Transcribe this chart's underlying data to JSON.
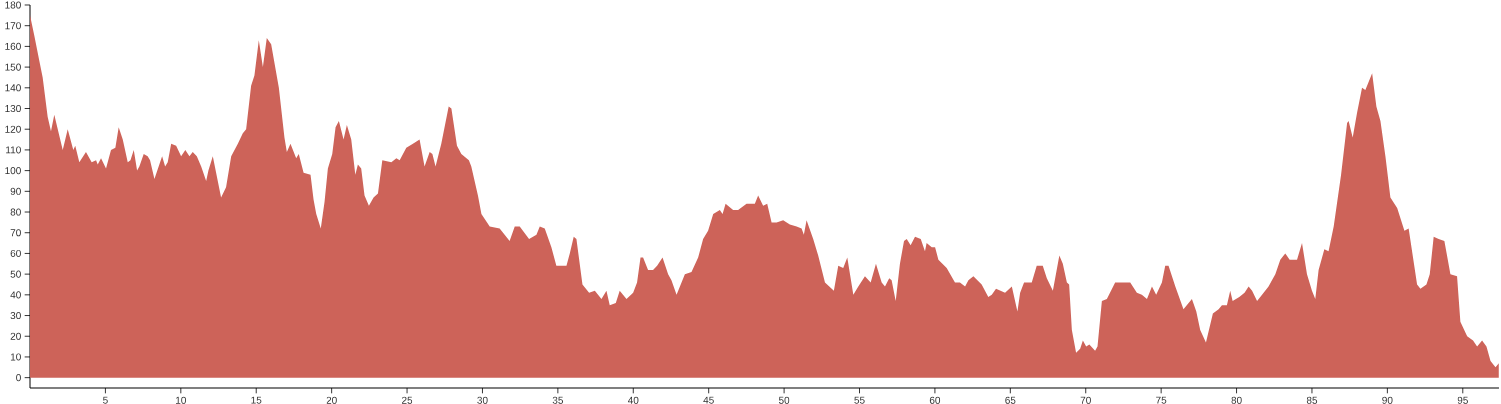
{
  "chart_data": {
    "type": "area",
    "color": "#cd6359",
    "x": [
      0.0,
      0.29,
      0.62,
      0.84,
      1.17,
      1.39,
      1.61,
      2.17,
      2.5,
      2.87,
      3.0,
      3.27,
      3.71,
      4.09,
      4.38,
      4.49,
      4.71,
      5.04,
      5.37,
      5.66,
      5.88,
      6.15,
      6.48,
      6.66,
      6.88,
      7.1,
      7.25,
      7.54,
      7.8,
      7.96,
      8.25,
      8.76,
      8.96,
      9.13,
      9.36,
      9.69,
      10.02,
      10.3,
      10.57,
      10.79,
      11.06,
      11.35,
      11.68,
      11.83,
      12.12,
      12.67,
      13.0,
      13.34,
      13.78,
      14.11,
      14.33,
      14.66,
      14.88,
      15.17,
      15.44,
      15.7,
      15.99,
      16.5,
      16.87,
      17.03,
      17.27,
      17.65,
      17.82,
      18.14,
      18.6,
      18.8,
      18.98,
      19.28,
      19.53,
      19.75,
      20.04,
      20.26,
      20.48,
      20.79,
      21.01,
      21.3,
      21.57,
      21.74,
      21.96,
      22.18,
      22.47,
      22.78,
      23.07,
      23.36,
      23.96,
      24.29,
      24.51,
      24.95,
      25.39,
      25.83,
      26.16,
      26.5,
      26.68,
      26.89,
      27.27,
      27.76,
      27.94,
      28.31,
      28.6,
      29.1,
      29.26,
      29.7,
      29.93,
      30.48,
      31.14,
      31.8,
      32.14,
      32.47,
      33.09,
      33.58,
      33.8,
      34.13,
      34.57,
      34.9,
      35.57,
      35.79,
      36.05,
      36.23,
      36.63,
      37.07,
      37.45,
      37.89,
      38.22,
      38.44,
      38.84,
      39.1,
      39.55,
      39.99,
      40.25,
      40.48,
      40.65,
      40.98,
      41.31,
      41.58,
      41.94,
      42.31,
      42.53,
      42.87,
      43.42,
      43.86,
      44.3,
      44.63,
      44.96,
      45.3,
      45.74,
      45.92,
      46.12,
      46.62,
      46.95,
      47.51,
      48.06,
      48.28,
      48.61,
      48.88,
      49.17,
      49.5,
      49.94,
      50.38,
      50.83,
      51.16,
      51.31,
      51.49,
      51.93,
      52.26,
      52.71,
      53.3,
      53.59,
      53.92,
      54.19,
      54.59,
      54.92,
      55.36,
      55.74,
      56.09,
      56.47,
      56.69,
      56.97,
      57.13,
      57.4,
      57.68,
      57.95,
      58.13,
      58.39,
      58.68,
      59.06,
      59.34,
      59.45,
      59.79,
      60.01,
      60.23,
      60.78,
      61.33,
      61.66,
      62.0,
      62.22,
      62.55,
      63.1,
      63.54,
      63.77,
      64.05,
      64.65,
      65.1,
      65.47,
      65.65,
      65.91,
      66.42,
      66.75,
      67.15,
      67.42,
      67.82,
      68.25,
      68.48,
      68.75,
      68.9,
      69.08,
      69.36,
      69.63,
      69.81,
      70.03,
      70.24,
      70.62,
      70.78,
      71.07,
      71.4,
      71.95,
      72.4,
      72.95,
      73.39,
      73.72,
      74.06,
      74.39,
      74.67,
      75.05,
      75.27,
      75.49,
      75.94,
      76.48,
      77.04,
      77.33,
      77.59,
      77.97,
      78.43,
      78.81,
      79.03,
      79.36,
      79.58,
      79.74,
      80.18,
      80.53,
      80.8,
      81.03,
      81.36,
      81.69,
      82.12,
      82.57,
      82.9,
      83.23,
      83.52,
      84.01,
      84.34,
      84.67,
      85.0,
      85.22,
      85.44,
      85.82,
      86.1,
      86.44,
      86.93,
      87.33,
      87.43,
      87.7,
      87.99,
      88.32,
      88.54,
      88.99,
      89.27,
      89.54,
      89.87,
      90.2,
      90.65,
      91.13,
      91.41,
      91.97,
      92.19,
      92.59,
      92.81,
      93.07,
      93.4,
      93.78,
      94.18,
      94.62,
      94.84,
      95.29,
      95.68,
      95.95,
      96.28,
      96.57,
      96.84,
      97.17,
      97.39
    ],
    "values": [
      175,
      165,
      153,
      145,
      126,
      119,
      127,
      110,
      120,
      110,
      112,
      104,
      109,
      104,
      105,
      103,
      106,
      101,
      110,
      111,
      121,
      115,
      104,
      105,
      110,
      100,
      102,
      108,
      107,
      105,
      96,
      107,
      102,
      104,
      113,
      112,
      107,
      110,
      107,
      109,
      107,
      102,
      95,
      100,
      107,
      87,
      92,
      107,
      113,
      118,
      120,
      141,
      146,
      163,
      150,
      164,
      161,
      140,
      116,
      109,
      113,
      106,
      108,
      99,
      98,
      86,
      79,
      72,
      85,
      101,
      108,
      121,
      124,
      115,
      122,
      115,
      98,
      103,
      101,
      88,
      83,
      87,
      89,
      105,
      104,
      106,
      105,
      111,
      113,
      115,
      102,
      109,
      108,
      102,
      113,
      131,
      130,
      112,
      108,
      105,
      102,
      88,
      79,
      73,
      72,
      66,
      73,
      73,
      67,
      69,
      73,
      72,
      63,
      54,
      54,
      60,
      68,
      67,
      45,
      41,
      42,
      38,
      42,
      35,
      36,
      42,
      38,
      41,
      46,
      58,
      58,
      52,
      52,
      54,
      58,
      50,
      47,
      40,
      50,
      51,
      58,
      67,
      71,
      79,
      81,
      79,
      84,
      81,
      81,
      84,
      84,
      88,
      83,
      84,
      75,
      75,
      76,
      74,
      73,
      72,
      69,
      76,
      67,
      59,
      46,
      42,
      54,
      53,
      58,
      40,
      44,
      49,
      46,
      55,
      46,
      44,
      48,
      47,
      37,
      55,
      66,
      67,
      64,
      68,
      67,
      61,
      65,
      63,
      63,
      57,
      53,
      46,
      46,
      44,
      47,
      49,
      45,
      39,
      40,
      43,
      41,
      44,
      32,
      41,
      46,
      46,
      54,
      54,
      48,
      42,
      59,
      55,
      46,
      45,
      23,
      12,
      14,
      18,
      15,
      16,
      13,
      15,
      37,
      38,
      46,
      46,
      46,
      41,
      40,
      38,
      44,
      40,
      46,
      54,
      54,
      44,
      33,
      38,
      32,
      23,
      17,
      31,
      33,
      35,
      35,
      42,
      37,
      39,
      41,
      44,
      42,
      37,
      40,
      44,
      50,
      57,
      60,
      57,
      57,
      65,
      50,
      42,
      38,
      52,
      62,
      61,
      73,
      98,
      123,
      124,
      116,
      128,
      140,
      139,
      147,
      131,
      124,
      107,
      87,
      82,
      71,
      72,
      45,
      43,
      45,
      50,
      68,
      67,
      66,
      50,
      49,
      27,
      20,
      18,
      15,
      18,
      15,
      8,
      5,
      7
    ],
    "xlim": [
      0,
      97.4
    ],
    "ylim": [
      -5,
      180
    ],
    "xticks": [
      5,
      10,
      15,
      20,
      25,
      30,
      35,
      40,
      45,
      50,
      55,
      60,
      65,
      70,
      75,
      80,
      85,
      90,
      95
    ],
    "yticks": [
      0,
      10,
      20,
      30,
      40,
      50,
      60,
      70,
      80,
      90,
      100,
      110,
      120,
      130,
      140,
      150,
      160,
      170,
      180
    ]
  }
}
